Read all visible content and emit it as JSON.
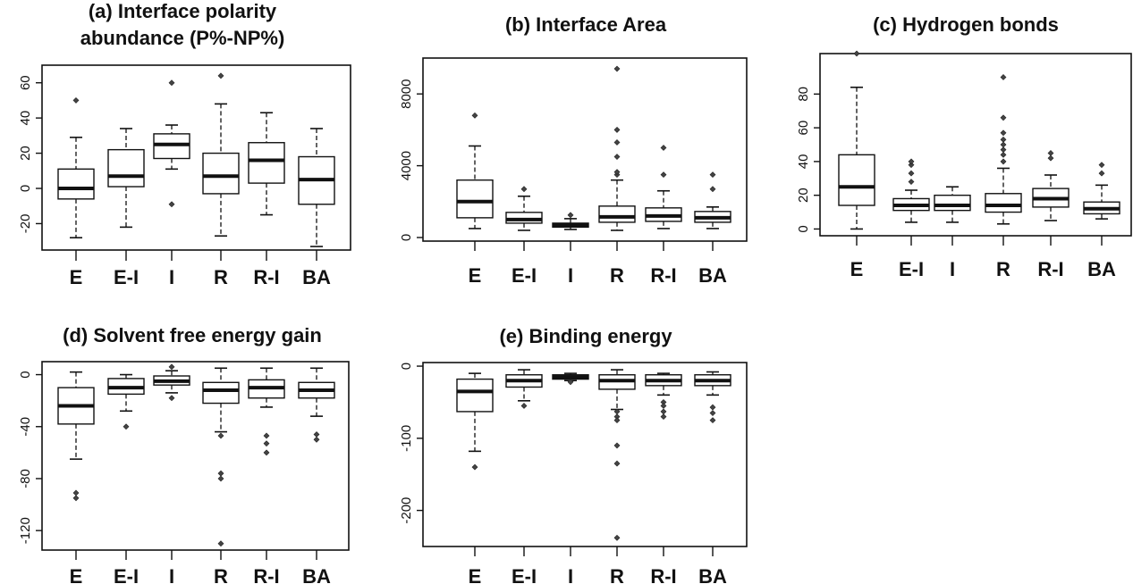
{
  "chart_data": [
    {
      "type": "box",
      "title": [
        "(a) Interface polarity",
        "abundance (P%-NP%)"
      ],
      "categories": [
        "E",
        "E-I",
        "I",
        "R",
        "R-I",
        "BA"
      ],
      "yticks": [
        -20,
        0,
        20,
        40,
        60
      ],
      "ylim": [
        -35,
        70
      ],
      "boxes": [
        {
          "min": -28,
          "q1": -6,
          "median": 0,
          "q3": 11,
          "max": 29,
          "outliers": [
            50
          ]
        },
        {
          "min": -22,
          "q1": 1,
          "median": 7,
          "q3": 22,
          "max": 34,
          "outliers": []
        },
        {
          "min": 11,
          "q1": 17,
          "median": 25,
          "q3": 31,
          "max": 36,
          "outliers": [
            60,
            -9
          ]
        },
        {
          "min": -27,
          "q1": -3,
          "median": 7,
          "q3": 20,
          "max": 48,
          "outliers": [
            64
          ]
        },
        {
          "min": -15,
          "q1": 3,
          "median": 16,
          "q3": 26,
          "max": 43,
          "outliers": []
        },
        {
          "min": -33,
          "q1": -9,
          "median": 5,
          "q3": 18,
          "max": 34,
          "outliers": []
        }
      ]
    },
    {
      "type": "box",
      "title": [
        "(b) Interface Area"
      ],
      "categories": [
        "E",
        "E-I",
        "I",
        "R",
        "R-I",
        "BA"
      ],
      "yticks": [
        0,
        4000,
        8000
      ],
      "ylim": [
        -200,
        10000
      ],
      "boxes": [
        {
          "min": 500,
          "q1": 1100,
          "median": 2000,
          "q3": 3200,
          "max": 5100,
          "outliers": [
            6800
          ]
        },
        {
          "min": 400,
          "q1": 800,
          "median": 1000,
          "q3": 1400,
          "max": 2300,
          "outliers": [
            2700
          ]
        },
        {
          "min": 450,
          "q1": 580,
          "median": 680,
          "q3": 800,
          "max": 1050,
          "outliers": [
            1250
          ]
        },
        {
          "min": 400,
          "q1": 850,
          "median": 1150,
          "q3": 1750,
          "max": 3200,
          "outliers": [
            3500,
            3650,
            4500,
            5300,
            6000,
            9400
          ]
        },
        {
          "min": 500,
          "q1": 900,
          "median": 1200,
          "q3": 1650,
          "max": 2600,
          "outliers": [
            3500,
            5000
          ]
        },
        {
          "min": 500,
          "q1": 850,
          "median": 1100,
          "q3": 1450,
          "max": 1700,
          "outliers": [
            2700,
            3500
          ]
        }
      ]
    },
    {
      "type": "box",
      "title": [
        "(c) Hydrogen bonds"
      ],
      "categories": [
        "E",
        "E-I",
        "I",
        "R",
        "R-I",
        "BA"
      ],
      "yticks": [
        0,
        20,
        40,
        60,
        80
      ],
      "ylim": [
        -4,
        104
      ],
      "boxes": [
        {
          "min": 0,
          "q1": 14,
          "median": 25,
          "q3": 44,
          "max": 84,
          "outliers": [
            104
          ]
        },
        {
          "min": 4,
          "q1": 11,
          "median": 14,
          "q3": 18,
          "max": 23,
          "outliers": [
            28,
            33,
            38,
            40
          ]
        },
        {
          "min": 4,
          "q1": 11,
          "median": 14,
          "q3": 20,
          "max": 25,
          "outliers": []
        },
        {
          "min": 3,
          "q1": 10,
          "median": 14,
          "q3": 21,
          "max": 36,
          "outliers": [
            40,
            44,
            47,
            50,
            53,
            57,
            66,
            90
          ]
        },
        {
          "min": 5,
          "q1": 13,
          "median": 18,
          "q3": 24,
          "max": 32,
          "outliers": [
            42,
            45
          ]
        },
        {
          "min": 6,
          "q1": 9,
          "median": 12,
          "q3": 16,
          "max": 26,
          "outliers": [
            33,
            38
          ]
        }
      ]
    },
    {
      "type": "box",
      "title": [
        "(d) Solvent free energy gain"
      ],
      "categories": [
        "E",
        "E-I",
        "I",
        "R",
        "R-I",
        "BA"
      ],
      "yticks": [
        -120,
        -80,
        -40,
        0
      ],
      "ylim": [
        -135,
        10
      ],
      "boxes": [
        {
          "min": -65,
          "q1": -38,
          "median": -24,
          "q3": -10,
          "max": 2,
          "outliers": [
            -91,
            -95
          ]
        },
        {
          "min": -28,
          "q1": -15,
          "median": -10,
          "q3": -3,
          "max": 0,
          "outliers": [
            -40
          ]
        },
        {
          "min": -14,
          "q1": -8,
          "median": -5,
          "q3": -1,
          "max": 3,
          "outliers": [
            6,
            -18
          ]
        },
        {
          "min": -44,
          "q1": -22,
          "median": -12,
          "q3": -6,
          "max": 5,
          "outliers": [
            -47,
            -76,
            -80,
            -130
          ]
        },
        {
          "min": -25,
          "q1": -18,
          "median": -10,
          "q3": -4,
          "max": 5,
          "outliers": [
            -47,
            -53,
            -60
          ]
        },
        {
          "min": -32,
          "q1": -18,
          "median": -12,
          "q3": -6,
          "max": 5,
          "outliers": [
            -46,
            -50
          ]
        }
      ]
    },
    {
      "type": "box",
      "title": [
        "(e) Binding energy"
      ],
      "categories": [
        "E",
        "E-I",
        "I",
        "R",
        "R-I",
        "BA"
      ],
      "yticks": [
        -200,
        -100,
        0
      ],
      "ylim": [
        -250,
        5
      ],
      "boxes": [
        {
          "min": -118,
          "q1": -63,
          "median": -35,
          "q3": -18,
          "max": -10,
          "outliers": [
            -140
          ]
        },
        {
          "min": -48,
          "q1": -29,
          "median": -20,
          "q3": -12,
          "max": -5,
          "outliers": [
            -55
          ]
        },
        {
          "min": -20,
          "q1": -18,
          "median": -15,
          "q3": -12,
          "max": -10,
          "outliers": [
            -22
          ]
        },
        {
          "min": -60,
          "q1": -32,
          "median": -20,
          "q3": -12,
          "max": -5,
          "outliers": [
            -63,
            -70,
            -75,
            -110,
            -135,
            -238
          ]
        },
        {
          "min": -40,
          "q1": -27,
          "median": -20,
          "q3": -12,
          "max": -10,
          "outliers": [
            -50,
            -55,
            -63,
            -70
          ]
        },
        {
          "min": -40,
          "q1": -27,
          "median": -20,
          "q3": -12,
          "max": -8,
          "outliers": [
            -57,
            -65,
            -75
          ]
        }
      ]
    }
  ]
}
